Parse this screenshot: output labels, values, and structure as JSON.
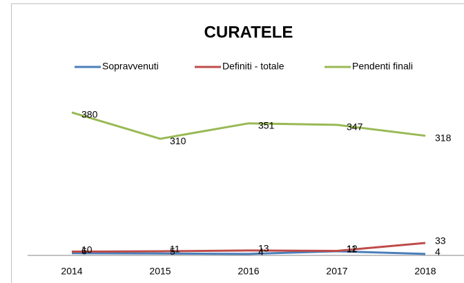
{
  "chart_data": {
    "type": "line",
    "title": "CURATELE",
    "categories": [
      "2014",
      "2015",
      "2016",
      "2017",
      "2018"
    ],
    "series": [
      {
        "name": "Sopravvenuti",
        "color": "#4a7ebb",
        "values": [
          6,
          5,
          4,
          11,
          4
        ]
      },
      {
        "name": "Definiti - totale",
        "color": "#be4b48",
        "values": [
          10,
          11,
          13,
          12,
          33
        ]
      },
      {
        "name": "Pendenti finali",
        "color": "#98b954",
        "values": [
          380,
          310,
          351,
          347,
          318
        ]
      }
    ],
    "ylim": [
      0,
      400
    ],
    "legend": "top",
    "data_labels": true
  }
}
